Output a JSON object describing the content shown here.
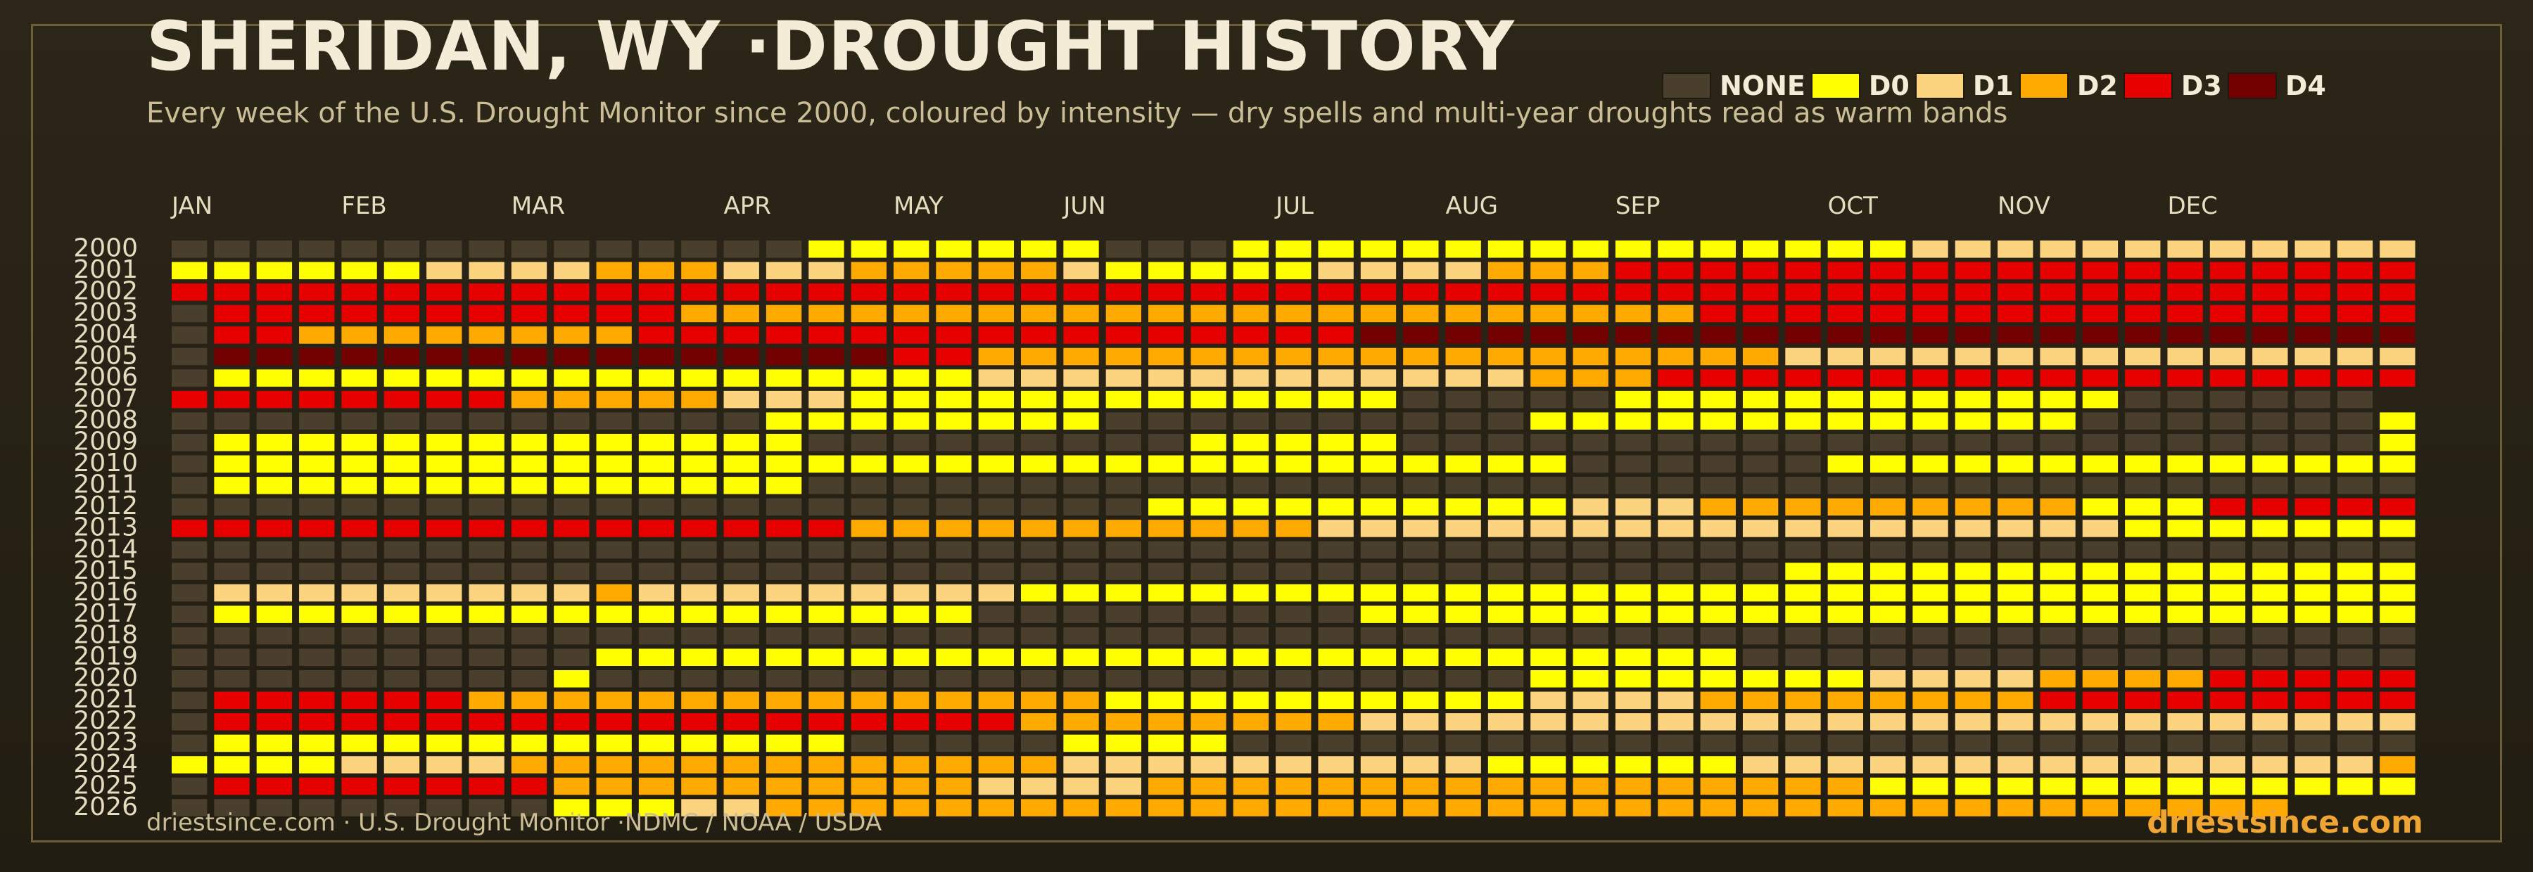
{
  "title": "SHERIDAN, WY ·DROUGHT HISTORY",
  "subtitle": "Every week of the U.S. Drought Monitor since 2000, coloured by intensity — dry spells and multi-year droughts read as warm bands",
  "footer": {
    "source": "driestsince.com  · U.S. Drought Monitor ·NDMC / NOAA / USDA",
    "brand": "driestsince.com"
  },
  "legend": [
    {
      "label": "NONE",
      "color": "#4a3f2c"
    },
    {
      "label": "D0",
      "color": "#ffff00"
    },
    {
      "label": "D1",
      "color": "#fcd37f"
    },
    {
      "label": "D2",
      "color": "#ffaa00"
    },
    {
      "label": "D3",
      "color": "#e60000"
    },
    {
      "label": "D4",
      "color": "#730000"
    }
  ],
  "chart_data": {
    "type": "heatmap",
    "title": "SHERIDAN, WY ·DROUGHT HISTORY",
    "x_unit": "week of year",
    "months": [
      {
        "label": "JAN",
        "week": 0
      },
      {
        "label": "FEB",
        "week": 4
      },
      {
        "label": "MAR",
        "week": 8
      },
      {
        "label": "APR",
        "week": 13
      },
      {
        "label": "MAY",
        "week": 17
      },
      {
        "label": "JUN",
        "week": 21
      },
      {
        "label": "JUL",
        "week": 26
      },
      {
        "label": "AUG",
        "week": 30
      },
      {
        "label": "SEP",
        "week": 34
      },
      {
        "label": "OCT",
        "week": 39
      },
      {
        "label": "NOV",
        "week": 43
      },
      {
        "label": "DEC",
        "week": 47
      }
    ],
    "levels": [
      "NONE",
      "D0",
      "D1",
      "D2",
      "D3",
      "D4"
    ],
    "level_code": "Each row string holds one character per week: '.' = NONE, '0' = D0, '1' = D1, '2' = D2, '3' = D3, '4' = D4, ' ' = no data",
    "years": [
      "2000",
      "2001",
      "2002",
      "2003",
      "2004",
      "2005",
      "2006",
      "2007",
      "2008",
      "2009",
      "2010",
      "2011",
      "2012",
      "2013",
      "2014",
      "2015",
      "2016",
      "2017",
      "2018",
      "2019",
      "2020",
      "2021",
      "2022",
      "2023",
      "2024",
      "2025",
      "2026"
    ],
    "rows": [
      "...............0000000...000000000000000011111111111110",
      "0000001111222111222221000001111222333333333333333333333.",
      "3333333333333333333333333333333333333333333333333333333",
      ".33333333333222222222222222222222222333333333333333333333",
      ".33222222223333333333333333344444444444444444444444444444",
      ".444444444444444433222222222222222222211111111111111110000",
      ".00000000000000000011111111111112223333333333333333333333",
      "33333333222221110000000000000.....000000000000......",
      "..............00000000..........0000000000000.......000000",
      ".00000000000000.........00000.......................000000",
      ".00000000000000000000000000000000......00000000000000000",
      ".00000000000000......................................",
      ".......................0000000000111222222222000333333333333",
      "3333333333333333222222222221111111111111111111000000000000000....",
      "........................................................",
      "......................................0000000000000000000000001",
      ".11111111121111111110000000000000000000000000000000000000",
      ".000000000000000000.........0000000000000000000000000.......",
      "........................................................",
      "..........000000000000000000000000000..............................",
      ".........0......................0000000011112222333333333333333333333333333",
      ".3333332222222222222220000000000111122222222333333333333333333333333333",
      ".33333333333333333332222222211111111111111111111111111100000000000000000000",
      ".000000000000000.....0000.........................................",
      "000011112222222222222111111111100000011111111111111122223333333333333333333",
      ".3333333322222222221111222222222222222220000000000000000000000000000000",
      ".........00011222222222222222222222222222222222222"
    ]
  }
}
